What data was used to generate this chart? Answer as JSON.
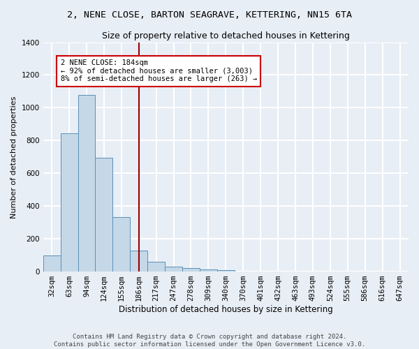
{
  "title": "2, NENE CLOSE, BARTON SEAGRAVE, KETTERING, NN15 6TA",
  "subtitle": "Size of property relative to detached houses in Kettering",
  "xlabel": "Distribution of detached houses by size in Kettering",
  "ylabel": "Number of detached properties",
  "categories": [
    "32sqm",
    "63sqm",
    "94sqm",
    "124sqm",
    "155sqm",
    "186sqm",
    "217sqm",
    "247sqm",
    "278sqm",
    "309sqm",
    "340sqm",
    "370sqm",
    "401sqm",
    "432sqm",
    "463sqm",
    "493sqm",
    "524sqm",
    "555sqm",
    "586sqm",
    "616sqm",
    "647sqm"
  ],
  "values": [
    98,
    843,
    1079,
    693,
    332,
    130,
    62,
    32,
    20,
    15,
    10,
    0,
    0,
    0,
    0,
    0,
    0,
    0,
    0,
    0,
    0
  ],
  "bar_color": "#c5d8e8",
  "bar_edge_color": "#5a90b8",
  "highlight_index": 5,
  "highlight_line_color": "#990000",
  "annotation_text": "2 NENE CLOSE: 184sqm\n← 92% of detached houses are smaller (3,003)\n8% of semi-detached houses are larger (263) →",
  "annotation_box_color": "#ffffff",
  "annotation_box_edge_color": "#cc0000",
  "ylim": [
    0,
    1400
  ],
  "yticks": [
    0,
    200,
    400,
    600,
    800,
    1000,
    1200,
    1400
  ],
  "background_color": "#e8eef5",
  "grid_color": "#ffffff",
  "footer": "Contains HM Land Registry data © Crown copyright and database right 2024.\nContains public sector information licensed under the Open Government Licence v3.0.",
  "title_fontsize": 9.5,
  "subtitle_fontsize": 9,
  "xlabel_fontsize": 8.5,
  "ylabel_fontsize": 8,
  "tick_fontsize": 7.5,
  "annotation_fontsize": 7.5,
  "footer_fontsize": 6.5
}
